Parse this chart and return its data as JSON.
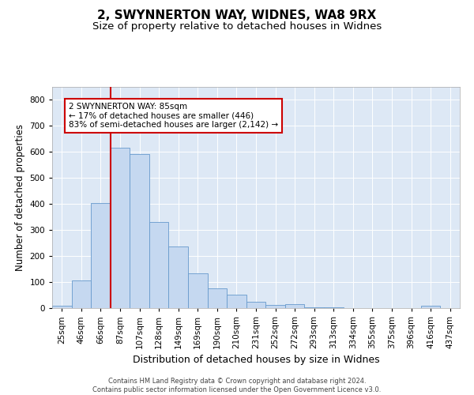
{
  "title1": "2, SWYNNERTON WAY, WIDNES, WA8 9RX",
  "title2": "Size of property relative to detached houses in Widnes",
  "xlabel": "Distribution of detached houses by size in Widnes",
  "ylabel": "Number of detached properties",
  "categories": [
    "25sqm",
    "46sqm",
    "66sqm",
    "87sqm",
    "107sqm",
    "128sqm",
    "149sqm",
    "169sqm",
    "190sqm",
    "210sqm",
    "231sqm",
    "252sqm",
    "272sqm",
    "293sqm",
    "313sqm",
    "334sqm",
    "355sqm",
    "375sqm",
    "396sqm",
    "416sqm",
    "437sqm"
  ],
  "values": [
    8,
    107,
    404,
    616,
    591,
    330,
    236,
    133,
    77,
    51,
    25,
    13,
    16,
    4,
    3,
    0,
    0,
    0,
    0,
    8,
    0
  ],
  "bar_color": "#c5d8f0",
  "bar_edge_color": "#6699cc",
  "vline_color": "#cc0000",
  "annotation_text": "2 SWYNNERTON WAY: 85sqm\n← 17% of detached houses are smaller (446)\n83% of semi-detached houses are larger (2,142) →",
  "annotation_box_facecolor": "white",
  "annotation_box_edgecolor": "#cc0000",
  "ylim": [
    0,
    850
  ],
  "yticks": [
    0,
    100,
    200,
    300,
    400,
    500,
    600,
    700,
    800
  ],
  "plot_background": "#dde8f5",
  "footer_text": "Contains HM Land Registry data © Crown copyright and database right 2024.\nContains public sector information licensed under the Open Government Licence v3.0.",
  "title1_fontsize": 11,
  "title2_fontsize": 9.5,
  "xlabel_fontsize": 9,
  "ylabel_fontsize": 8.5,
  "tick_fontsize": 7.5,
  "annotation_fontsize": 7.5,
  "footer_fontsize": 6
}
